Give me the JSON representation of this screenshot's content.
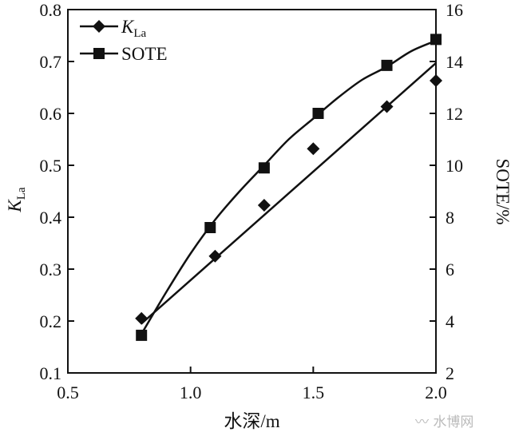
{
  "chart_data": {
    "type": "scatter",
    "xlabel": "水深/m",
    "ylabel_left": "K",
    "ylabel_left_sub": "La",
    "ylabel_right": "SOTE/%",
    "xlim": [
      0.5,
      2.0
    ],
    "ylim_left": [
      0.1,
      0.8
    ],
    "ylim_right": [
      2,
      16
    ],
    "xticks": [
      "0.5",
      "1.0",
      "1.5",
      "2.0"
    ],
    "yticks_left": [
      "0.1",
      "0.2",
      "0.3",
      "0.4",
      "0.5",
      "0.6",
      "0.7",
      "0.8"
    ],
    "yticks_right": [
      "2",
      "4",
      "6",
      "8",
      "10",
      "12",
      "14",
      "16"
    ],
    "grid": false,
    "legend_position": "top-left",
    "series": [
      {
        "name": "K",
        "name_sub": "La",
        "axis": "left",
        "marker": "diamond",
        "x": [
          0.8,
          1.1,
          1.3,
          1.5,
          1.8,
          2.0
        ],
        "y": [
          0.205,
          0.325,
          0.423,
          0.532,
          0.613,
          0.663
        ],
        "fit_x": [
          0.8,
          2.0
        ],
        "fit_y": [
          0.195,
          0.697
        ]
      },
      {
        "name": "SOTE",
        "axis": "right",
        "marker": "square",
        "x": [
          0.8,
          1.08,
          1.3,
          1.52,
          1.8,
          2.0
        ],
        "y": [
          3.45,
          7.6,
          9.9,
          12.0,
          13.85,
          14.85
        ],
        "fit_x": [
          0.8,
          0.9,
          1.0,
          1.1,
          1.2,
          1.3,
          1.4,
          1.5,
          1.6,
          1.7,
          1.8,
          1.9,
          2.0
        ],
        "fit_y": [
          3.5,
          5.1,
          6.6,
          7.9,
          9.0,
          10.0,
          11.0,
          11.8,
          12.6,
          13.3,
          13.8,
          14.4,
          14.8
        ]
      }
    ]
  },
  "watermark": "水博网"
}
